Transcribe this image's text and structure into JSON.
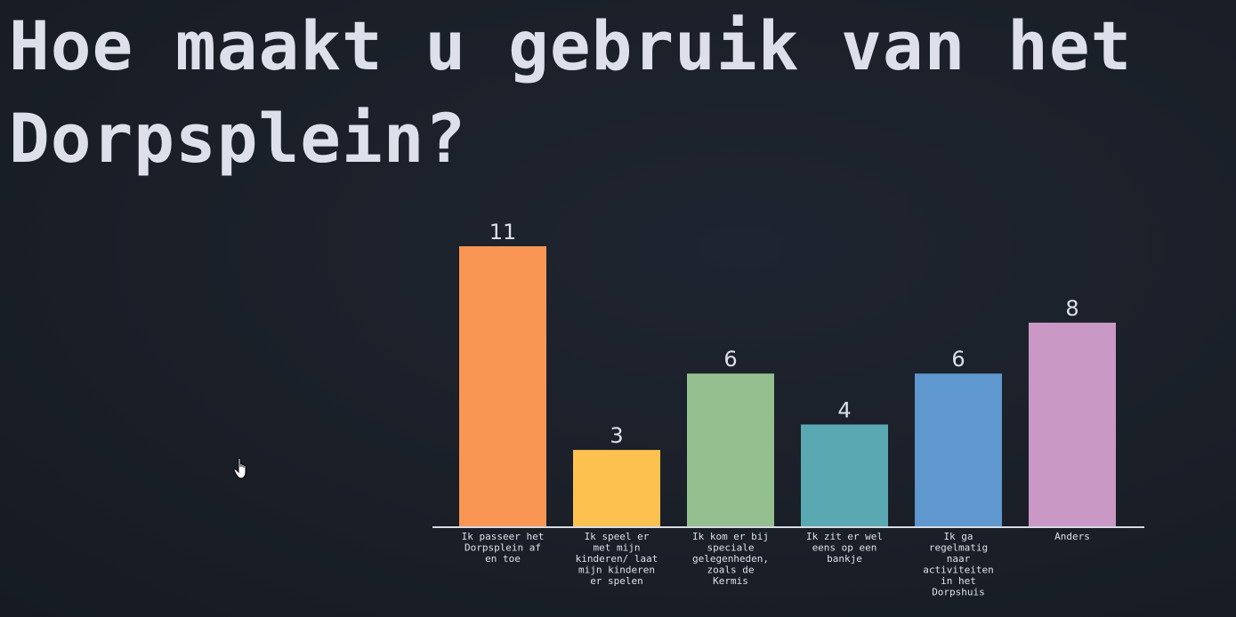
{
  "title": "Hoe maakt u gebruik van het Dorpsplein?",
  "cursor_icon": "hand-pointer-icon",
  "colors": {
    "background": "#1b2029",
    "text": "#dde0ea",
    "axis": "#d8dce6",
    "bars": [
      "#f99654",
      "#fdc14f",
      "#94bf8f",
      "#5aa9b2",
      "#5f97cf",
      "#c998c4"
    ]
  },
  "chart_data": {
    "type": "bar",
    "categories": [
      [
        "Ik passeer het",
        "Dorpsplein af",
        "en toe"
      ],
      [
        "Ik speel er",
        "met mijn",
        "kinderen/ laat",
        "mijn kinderen",
        "er spelen"
      ],
      [
        "Ik kom er bij",
        "speciale",
        "gelegenheden,",
        "zoals de",
        "Kermis"
      ],
      [
        "Ik zit er wel",
        "eens op een",
        "bankje"
      ],
      [
        "Ik ga",
        "regelmatig",
        "naar",
        "activiteiten",
        "in het",
        "Dorpshuis"
      ],
      [
        "Anders"
      ]
    ],
    "values": [
      11,
      3,
      6,
      4,
      6,
      8
    ],
    "data_labels": [
      "11",
      "3",
      "6",
      "4",
      "6",
      "8"
    ],
    "ylim": [
      0,
      11
    ],
    "grid": false,
    "legend": "none",
    "xlabel": "",
    "ylabel": ""
  }
}
